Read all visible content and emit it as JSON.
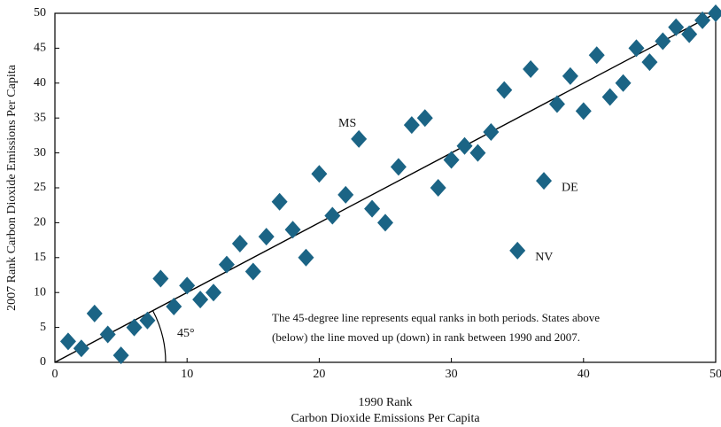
{
  "chart_data": {
    "type": "scatter",
    "x_label": "1990 Rank",
    "x_label_sub": "Carbon Dioxide Emissions Per Capita",
    "y_label": "2007 Rank  Carbon Dioxide Emissions Per Capita",
    "angle_label": "45°",
    "note": [
      "The 45-degree line represents equal ranks in both periods. States above",
      "(below) the line moved up (down) in rank between 1990 and 2007."
    ],
    "series": [
      {
        "name": "States",
        "color": "#1b6485",
        "x": [
          1,
          2,
          3,
          4,
          5,
          6,
          7,
          8,
          9,
          10,
          11,
          12,
          13,
          14,
          15,
          16,
          17,
          18,
          19,
          20,
          21,
          22,
          23,
          24,
          25,
          26,
          27,
          28,
          29,
          30,
          31,
          32,
          33,
          34,
          35,
          36,
          37,
          38,
          39,
          40,
          41,
          42,
          43,
          44,
          45,
          46,
          47,
          48,
          49,
          50
        ],
        "values": [
          3,
          2,
          7,
          4,
          1,
          5,
          6,
          12,
          8,
          11,
          9,
          10,
          14,
          17,
          13,
          18,
          23,
          19,
          15,
          27,
          21,
          24,
          32,
          22,
          20,
          28,
          34,
          35,
          25,
          29,
          31,
          30,
          33,
          39,
          16,
          42,
          26,
          37,
          41,
          36,
          44,
          38,
          40,
          45,
          43,
          46,
          48,
          47,
          49,
          50
        ],
        "labels": [
          null,
          null,
          null,
          null,
          null,
          null,
          null,
          null,
          null,
          null,
          null,
          null,
          null,
          null,
          null,
          null,
          null,
          null,
          null,
          null,
          null,
          null,
          "MS",
          null,
          null,
          null,
          null,
          null,
          null,
          null,
          null,
          null,
          null,
          null,
          "NV",
          null,
          "DE",
          null,
          null,
          null,
          null,
          null,
          null,
          null,
          null,
          null,
          null,
          null,
          null,
          null
        ]
      }
    ],
    "reference_line": {
      "x": [
        0,
        50
      ],
      "y": [
        0,
        50
      ]
    },
    "xlim": [
      0,
      50
    ],
    "ylim": [
      0,
      50
    ],
    "xticks": [
      0,
      10,
      20,
      30,
      40,
      50
    ],
    "yticks": [
      0,
      5,
      10,
      15,
      20,
      25,
      30,
      35,
      40,
      45,
      50
    ]
  }
}
